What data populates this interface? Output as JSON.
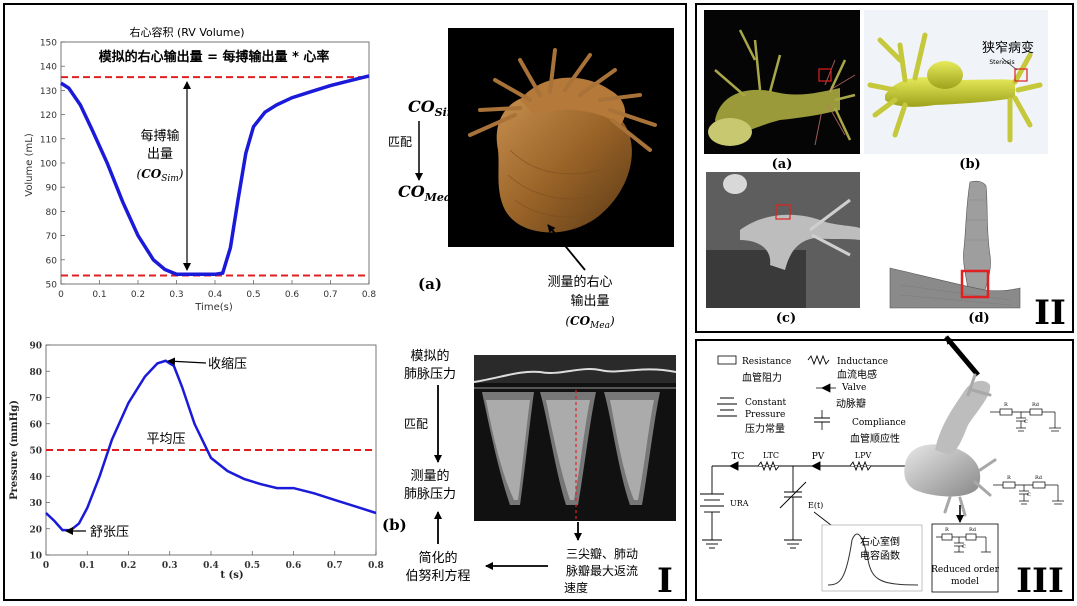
{
  "panel_i": {
    "roman": "I",
    "rv_chart_title": "右心容积 (RV Volume)",
    "rv_formula": "模拟的右心输出量 = 每搏输出量 * 心率",
    "stroke_label_1": "每搏输",
    "stroke_label_2": "出量",
    "stroke_label_3": "(COSim)",
    "co_sim": "COSim",
    "match": "匹配",
    "co_mea": "COMea",
    "label_a": "(a)",
    "measured_1": "测量的右心",
    "measured_2": "输出量",
    "measured_3": "(COMea)",
    "systolic": "收缩压",
    "mean": "平均压",
    "diastolic": "舒张压",
    "sim_pa_1": "模拟的",
    "sim_pa_2": "肺脉压力",
    "match2": "匹配",
    "mea_pa_1": "测量的",
    "mea_pa_2": "肺脉压力",
    "label_b": "(b)",
    "bernoulli_1": "简化的",
    "bernoulli_2": "伯努利方程",
    "velocity_1": "三尖瓣、肺动",
    "velocity_2": "脉瓣最大返流",
    "velocity_3": "速度"
  },
  "panel_ii": {
    "roman": "II",
    "label_a": "(a)",
    "label_b": "(b)",
    "label_c": "(c)",
    "label_d": "(d)",
    "stenosis_cn": "狭窄病变",
    "stenosis_en": "Stenosis"
  },
  "panel_iii": {
    "roman": "III",
    "resistance_en": "Resistance",
    "resistance_cn": "血管阻力",
    "inductance_en": "Inductance",
    "inductance_cn": "血流电感",
    "valve_en": "Valve",
    "valve_cn": "动脉瓣",
    "pressure_en_1": "Constant",
    "pressure_en_2": "Pressure",
    "pressure_cn": "压力常量",
    "compliance_en": "Compliance",
    "compliance_cn": "血管顺应性",
    "tc": "TC",
    "ltc": "LTC",
    "pv": "PV",
    "lpv": "LPV",
    "ura": "URA",
    "et": "E(t)",
    "elastance_1": "右心室倒",
    "elastance_2": "电容函数",
    "rom_1": "Reduced order",
    "rom_2": "model",
    "r": "R",
    "rd": "Rd",
    "c": "C"
  },
  "chart_data": [
    {
      "type": "line",
      "title": "右心容积 (RV Volume)",
      "xlabel": "Time(s)",
      "ylabel": "Volume (mL)",
      "xlim": [
        0,
        0.8
      ],
      "ylim": [
        50,
        150
      ],
      "xticks": [
        "0",
        "0.1",
        "0.2",
        "0.3",
        "0.4",
        "0.5",
        "0.6",
        "0.7",
        "0.8"
      ],
      "yticks": [
        "50",
        "60",
        "70",
        "80",
        "90",
        "100",
        "110",
        "120",
        "130",
        "140",
        "150"
      ],
      "grid": false,
      "x": [
        0,
        0.02,
        0.05,
        0.08,
        0.12,
        0.16,
        0.2,
        0.24,
        0.27,
        0.3,
        0.35,
        0.4,
        0.42,
        0.44,
        0.46,
        0.48,
        0.5,
        0.53,
        0.56,
        0.6,
        0.65,
        0.7,
        0.75,
        0.8
      ],
      "y": [
        133,
        131,
        124,
        114,
        100,
        84,
        70,
        60,
        56,
        54,
        54,
        54,
        54.5,
        65,
        85,
        104,
        115,
        121,
        124,
        127,
        129.5,
        132,
        134,
        136
      ],
      "reference_lines": [
        135.5,
        53.5
      ]
    },
    {
      "type": "line",
      "xlabel": "t (s)",
      "ylabel": "Pressure (mmHg)",
      "xlim": [
        0,
        0.8
      ],
      "ylim": [
        10,
        90
      ],
      "xticks": [
        "0",
        "0.1",
        "0.2",
        "0.3",
        "0.4",
        "0.5",
        "0.6",
        "0.7",
        "0.8"
      ],
      "yticks": [
        "10",
        "20",
        "30",
        "40",
        "50",
        "60",
        "70",
        "80",
        "90"
      ],
      "grid": false,
      "x": [
        0,
        0.02,
        0.04,
        0.06,
        0.08,
        0.1,
        0.13,
        0.16,
        0.2,
        0.24,
        0.27,
        0.29,
        0.31,
        0.33,
        0.36,
        0.4,
        0.44,
        0.48,
        0.52,
        0.56,
        0.6,
        0.65,
        0.7,
        0.75,
        0.8
      ],
      "y": [
        26,
        23,
        19.5,
        19.5,
        22,
        28,
        40,
        54,
        68,
        78,
        83,
        84,
        82,
        74,
        60,
        47,
        42,
        39,
        37,
        35.5,
        35.5,
        33.5,
        31,
        28.5,
        26
      ],
      "reference_lines": [
        50
      ]
    }
  ]
}
